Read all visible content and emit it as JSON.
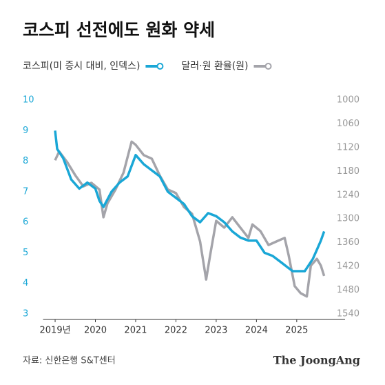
{
  "chart_data": {
    "type": "line",
    "title": "코스피 선전에도 원화 약세",
    "source": "자료: 신한은행 S&T센터",
    "brand": "The JoongAng",
    "xlim": [
      2018.7,
      2026.2
    ],
    "xticks": [
      {
        "value": 2019,
        "label": "2019년"
      },
      2020,
      2021,
      2022,
      2023,
      2024,
      2025
    ],
    "ylim": [
      3,
      10
    ],
    "yticks": [
      3,
      4,
      5,
      6,
      7,
      8,
      9,
      10
    ],
    "y2lim": [
      1540,
      1000
    ],
    "y2ticks": [
      1000,
      1060,
      1120,
      1180,
      1240,
      1300,
      1360,
      1420,
      1480,
      1540
    ],
    "grid": false,
    "series": [
      {
        "name": "코스피(미 증시 대비, 인덱스)",
        "color": "#1aa7d6",
        "axis": "y",
        "x": [
          2019.0,
          2019.05,
          2019.2,
          2019.4,
          2019.6,
          2019.8,
          2020.0,
          2020.1,
          2020.2,
          2020.4,
          2020.6,
          2020.8,
          2021.0,
          2021.2,
          2021.4,
          2021.6,
          2021.8,
          2022.0,
          2022.2,
          2022.4,
          2022.6,
          2022.8,
          2023.0,
          2023.2,
          2023.4,
          2023.6,
          2023.8,
          2024.0,
          2024.2,
          2024.4,
          2024.6,
          2024.8,
          2024.9,
          2025.0,
          2025.2,
          2025.3,
          2025.4,
          2025.5,
          2025.6,
          2025.68
        ],
        "values": [
          9.0,
          8.4,
          8.1,
          7.4,
          7.1,
          7.3,
          7.1,
          6.7,
          6.5,
          7.0,
          7.3,
          7.5,
          8.2,
          7.9,
          7.7,
          7.5,
          7.0,
          6.8,
          6.6,
          6.2,
          6.0,
          6.3,
          6.2,
          6.0,
          5.7,
          5.5,
          5.4,
          5.4,
          5.0,
          4.9,
          4.7,
          4.5,
          4.4,
          4.4,
          4.4,
          4.6,
          4.8,
          5.1,
          5.4,
          5.7
        ]
      },
      {
        "name": "달러·원 환율(원)",
        "color": "#a4a4aa",
        "axis": "y2",
        "x": [
          2019.0,
          2019.1,
          2019.3,
          2019.5,
          2019.7,
          2019.9,
          2020.1,
          2020.2,
          2020.3,
          2020.5,
          2020.7,
          2020.9,
          2021.0,
          2021.2,
          2021.4,
          2021.6,
          2021.8,
          2022.0,
          2022.2,
          2022.4,
          2022.6,
          2022.75,
          2022.85,
          2023.0,
          2023.2,
          2023.4,
          2023.6,
          2023.8,
          2023.9,
          2024.1,
          2024.3,
          2024.5,
          2024.7,
          2024.8,
          2024.95,
          2025.1,
          2025.25,
          2025.35,
          2025.5,
          2025.6,
          2025.68
        ],
        "values": [
          1152,
          1130,
          1157,
          1190,
          1218,
          1209,
          1226,
          1296,
          1261,
          1226,
          1183,
          1105,
          1113,
          1139,
          1148,
          1191,
          1226,
          1235,
          1270,
          1287,
          1357,
          1453,
          1392,
          1305,
          1322,
          1296,
          1322,
          1348,
          1314,
          1331,
          1366,
          1357,
          1348,
          1392,
          1470,
          1488,
          1496,
          1418,
          1401,
          1418,
          1444
        ]
      }
    ]
  }
}
